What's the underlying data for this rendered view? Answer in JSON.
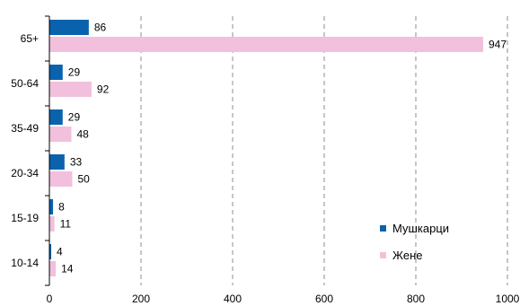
{
  "chart_data": {
    "type": "bar",
    "orientation": "horizontal",
    "title": "",
    "xlabel": "",
    "ylabel": "",
    "categories": [
      "65+",
      "50-64",
      "35-49",
      "20-34",
      "15-19",
      "10-14"
    ],
    "series": [
      {
        "name": "Мушкарци",
        "color": "#0a62ad",
        "values": [
          86,
          29,
          29,
          33,
          8,
          4
        ]
      },
      {
        "name": "Жене",
        "color": "#f2c0dc",
        "values": [
          947,
          92,
          48,
          50,
          11,
          14
        ]
      }
    ],
    "xlim": [
      0,
      1000
    ],
    "xticks": [
      0,
      200,
      400,
      600,
      800,
      1000
    ],
    "grid": "vertical-dashed",
    "legend_position": "bottom-right"
  }
}
